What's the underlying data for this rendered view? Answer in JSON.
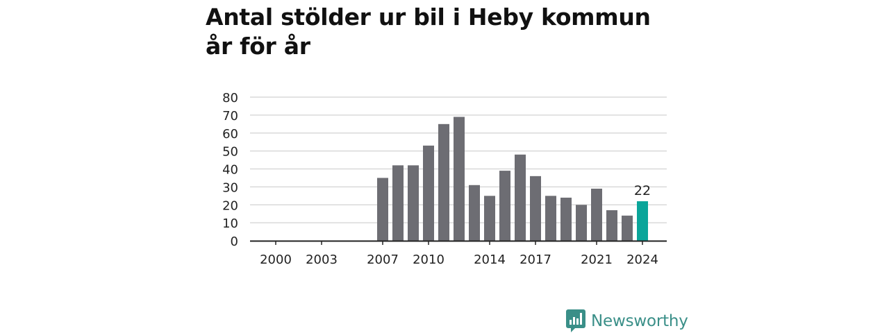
{
  "title": "Antal stölder ur bil i Heby kommun år för år",
  "brand": {
    "name": "Newsworthy",
    "icon": "newsworthy-logo-icon",
    "color": "#3a8f88"
  },
  "colors": {
    "bar": "#6d6d73",
    "highlight": "#0aa59a",
    "grid": "#d9d9d9",
    "axis": "#222222"
  },
  "chart_data": {
    "type": "bar",
    "title": "Antal stölder ur bil i Heby kommun år för år",
    "xlabel": "",
    "ylabel": "",
    "ylim": [
      0,
      80
    ],
    "yticks": [
      0,
      10,
      20,
      30,
      40,
      50,
      60,
      70,
      80
    ],
    "xticks": [
      "2000",
      "2003",
      "2007",
      "2010",
      "2014",
      "2017",
      "2021",
      "2024"
    ],
    "grid": true,
    "legend": "none",
    "categories": [
      "2000",
      "2001",
      "2002",
      "2003",
      "2004",
      "2005",
      "2006",
      "2007",
      "2008",
      "2009",
      "2010",
      "2011",
      "2012",
      "2013",
      "2014",
      "2015",
      "2016",
      "2017",
      "2018",
      "2019",
      "2020",
      "2021",
      "2022",
      "2023",
      "2024"
    ],
    "values": [
      null,
      null,
      null,
      null,
      null,
      null,
      null,
      35,
      42,
      42,
      53,
      65,
      69,
      31,
      25,
      39,
      48,
      36,
      25,
      24,
      20,
      29,
      17,
      14,
      22
    ],
    "highlight": {
      "category": "2024",
      "label": "22"
    }
  }
}
